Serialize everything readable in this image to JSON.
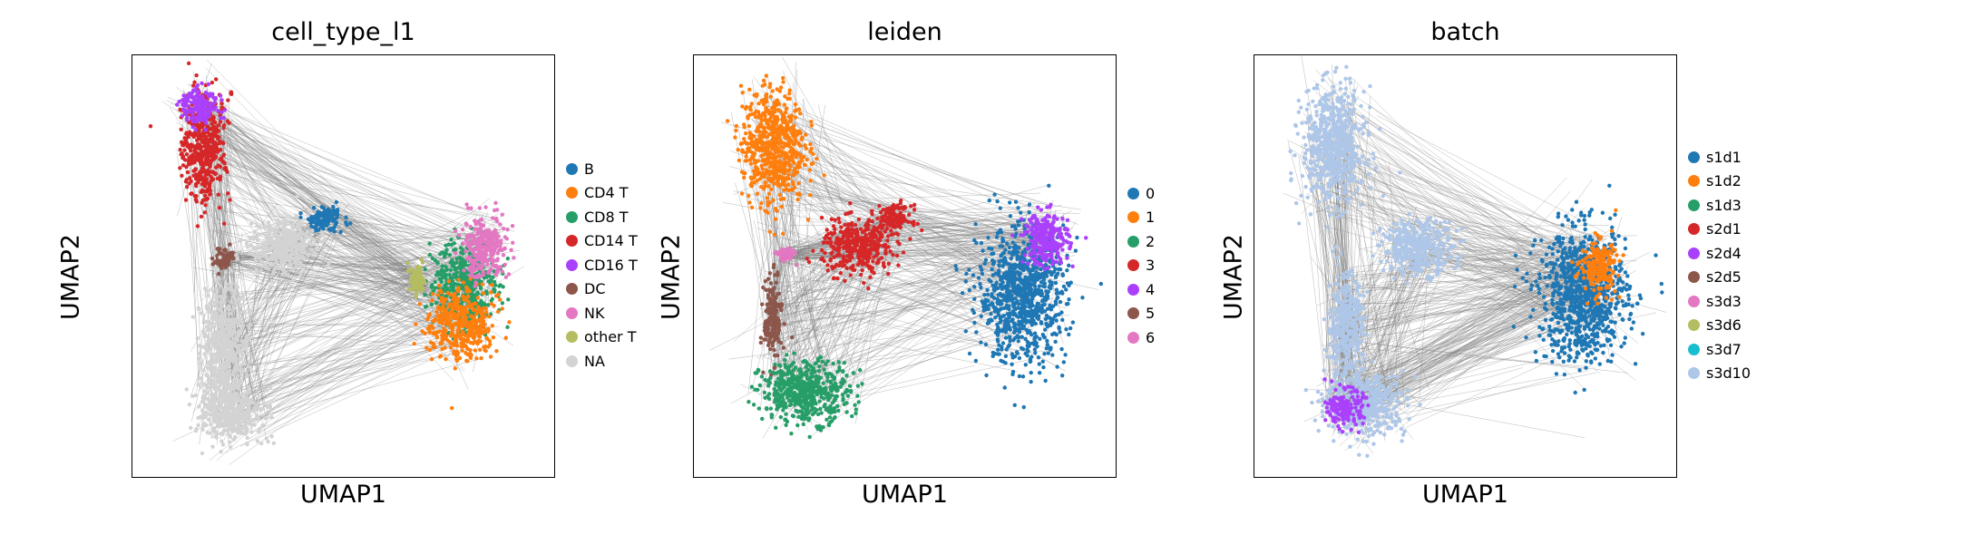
{
  "chart_data": [
    {
      "type": "scatter",
      "title": "cell_type_l1",
      "xlabel": "UMAP1",
      "ylabel": "UMAP2",
      "xticks": false,
      "yticks": false,
      "grid": false,
      "legend_position": "right",
      "legend": [
        {
          "label": "B",
          "color": "#1f77b4"
        },
        {
          "label": "CD4 T",
          "color": "#ff7f0e"
        },
        {
          "label": "CD8 T",
          "color": "#279e68"
        },
        {
          "label": "CD14 T",
          "color": "#d62728"
        },
        {
          "label": "CD16 T",
          "color": "#aa40fc"
        },
        {
          "label": "DC",
          "color": "#8c564b"
        },
        {
          "label": "NK",
          "color": "#e377c2"
        },
        {
          "label": "other T",
          "color": "#b5bd61"
        },
        {
          "label": "NA",
          "color": "#d3d3d3"
        }
      ],
      "clusters": [
        {
          "category": "CD14 T",
          "x": 0.15,
          "y": 0.8,
          "rx": 0.05,
          "ry": 0.12
        },
        {
          "category": "CD16 T",
          "x": 0.14,
          "y": 0.9,
          "rx": 0.04,
          "ry": 0.04
        },
        {
          "category": "B",
          "x": 0.45,
          "y": 0.62,
          "rx": 0.04,
          "ry": 0.03
        },
        {
          "category": "NA",
          "x": 0.35,
          "y": 0.55,
          "rx": 0.07,
          "ry": 0.06
        },
        {
          "category": "DC",
          "x": 0.2,
          "y": 0.52,
          "rx": 0.02,
          "ry": 0.02
        },
        {
          "category": "NA",
          "x": 0.2,
          "y": 0.3,
          "rx": 0.05,
          "ry": 0.15
        },
        {
          "category": "NA",
          "x": 0.22,
          "y": 0.13,
          "rx": 0.07,
          "ry": 0.06
        },
        {
          "category": "CD8 T",
          "x": 0.8,
          "y": 0.45,
          "rx": 0.07,
          "ry": 0.1
        },
        {
          "category": "CD4 T",
          "x": 0.79,
          "y": 0.36,
          "rx": 0.07,
          "ry": 0.08
        },
        {
          "category": "NK",
          "x": 0.85,
          "y": 0.55,
          "rx": 0.05,
          "ry": 0.07
        },
        {
          "category": "other T",
          "x": 0.68,
          "y": 0.47,
          "rx": 0.02,
          "ry": 0.03
        }
      ]
    },
    {
      "type": "scatter",
      "title": "leiden",
      "xlabel": "UMAP1",
      "ylabel": "UMAP2",
      "xticks": false,
      "yticks": false,
      "grid": false,
      "legend_position": "right",
      "legend": [
        {
          "label": "0",
          "color": "#1f77b4"
        },
        {
          "label": "1",
          "color": "#ff7f0e"
        },
        {
          "label": "2",
          "color": "#279e68"
        },
        {
          "label": "3",
          "color": "#d62728"
        },
        {
          "label": "4",
          "color": "#aa40fc"
        },
        {
          "label": "5",
          "color": "#8c564b"
        },
        {
          "label": "6",
          "color": "#e377c2"
        }
      ],
      "clusters": [
        {
          "category": "1",
          "x": 0.17,
          "y": 0.8,
          "rx": 0.07,
          "ry": 0.13
        },
        {
          "category": "3",
          "x": 0.38,
          "y": 0.55,
          "rx": 0.08,
          "ry": 0.06
        },
        {
          "category": "3",
          "x": 0.47,
          "y": 0.62,
          "rx": 0.04,
          "ry": 0.03
        },
        {
          "category": "6",
          "x": 0.2,
          "y": 0.53,
          "rx": 0.02,
          "ry": 0.015
        },
        {
          "category": "5",
          "x": 0.17,
          "y": 0.37,
          "rx": 0.02,
          "ry": 0.09
        },
        {
          "category": "2",
          "x": 0.25,
          "y": 0.19,
          "rx": 0.1,
          "ry": 0.07
        },
        {
          "category": "0",
          "x": 0.79,
          "y": 0.43,
          "rx": 0.1,
          "ry": 0.15
        },
        {
          "category": "4",
          "x": 0.85,
          "y": 0.57,
          "rx": 0.05,
          "ry": 0.06
        }
      ]
    },
    {
      "type": "scatter",
      "title": "batch",
      "xlabel": "UMAP1",
      "ylabel": "UMAP2",
      "xticks": false,
      "yticks": false,
      "grid": false,
      "legend_position": "right",
      "legend": [
        {
          "label": "s1d1",
          "color": "#1f77b4"
        },
        {
          "label": "s1d2",
          "color": "#ff7f0e"
        },
        {
          "label": "s1d3",
          "color": "#279e68"
        },
        {
          "label": "s2d1",
          "color": "#d62728"
        },
        {
          "label": "s2d4",
          "color": "#aa40fc"
        },
        {
          "label": "s2d5",
          "color": "#8c564b"
        },
        {
          "label": "s3d3",
          "color": "#e377c2"
        },
        {
          "label": "s3d6",
          "color": "#b5bd61"
        },
        {
          "label": "s3d7",
          "color": "#17becf"
        },
        {
          "label": "s3d10",
          "color": "#aec7e8"
        }
      ],
      "clusters": [
        {
          "category": "s3d10",
          "x": 0.17,
          "y": 0.8,
          "rx": 0.07,
          "ry": 0.13
        },
        {
          "category": "s3d10",
          "x": 0.38,
          "y": 0.55,
          "rx": 0.08,
          "ry": 0.06
        },
        {
          "category": "s3d10",
          "x": 0.2,
          "y": 0.35,
          "rx": 0.04,
          "ry": 0.12
        },
        {
          "category": "s3d10",
          "x": 0.25,
          "y": 0.16,
          "rx": 0.09,
          "ry": 0.07
        },
        {
          "category": "s1d1",
          "x": 0.79,
          "y": 0.43,
          "rx": 0.1,
          "ry": 0.15
        },
        {
          "category": "s2d4",
          "x": 0.2,
          "y": 0.15,
          "rx": 0.04,
          "ry": 0.04
        },
        {
          "category": "s1d2",
          "x": 0.83,
          "y": 0.5,
          "rx": 0.04,
          "ry": 0.06
        }
      ]
    }
  ]
}
